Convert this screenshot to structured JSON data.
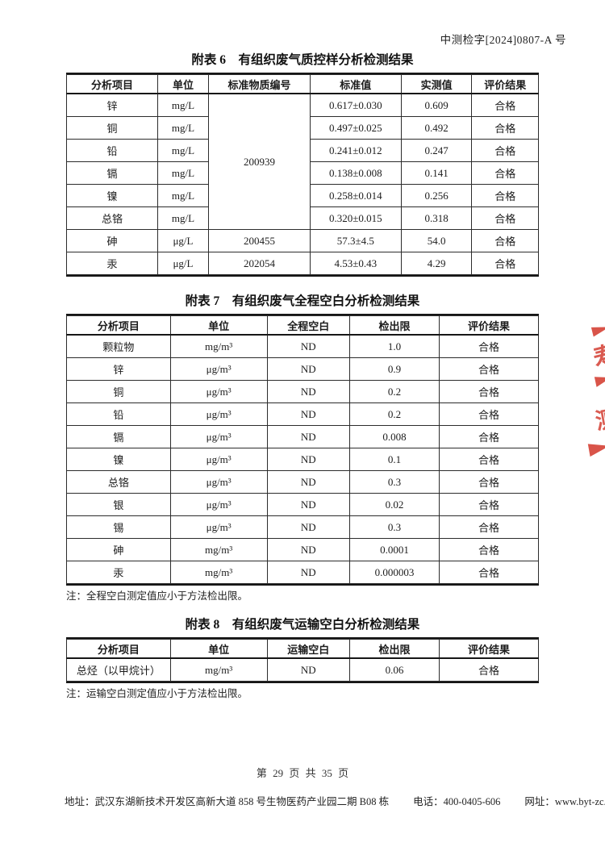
{
  "doc": {
    "number": "中测检字[2024]0807-A 号",
    "page_indicator": "第 29 页 共 35 页",
    "footer": {
      "address": "地址：武汉东湖新技术开发区高新大道 858 号生物医药产业园二期 B08 栋",
      "phone": "电话：400-0405-606",
      "website": "网址：www.byt-zc.com"
    }
  },
  "table6": {
    "title": "附表 6　有组织废气质控样分析检测结果",
    "headers": [
      "分析项目",
      "单位",
      "标准物质编号",
      "标准值",
      "实测值",
      "评价结果"
    ],
    "rows": [
      [
        {
          "t": "锌"
        },
        {
          "t": "mg/L"
        },
        {
          "t": "200939",
          "rowspan": 6
        },
        {
          "t": "0.617±0.030"
        },
        {
          "t": "0.609"
        },
        {
          "t": "合格"
        }
      ],
      [
        {
          "t": "铜"
        },
        {
          "t": "mg/L"
        },
        {
          "t": "0.497±0.025"
        },
        {
          "t": "0.492"
        },
        {
          "t": "合格"
        }
      ],
      [
        {
          "t": "铅"
        },
        {
          "t": "mg/L"
        },
        {
          "t": "0.241±0.012"
        },
        {
          "t": "0.247"
        },
        {
          "t": "合格"
        }
      ],
      [
        {
          "t": "镉"
        },
        {
          "t": "mg/L"
        },
        {
          "t": "0.138±0.008"
        },
        {
          "t": "0.141"
        },
        {
          "t": "合格"
        }
      ],
      [
        {
          "t": "镍"
        },
        {
          "t": "mg/L"
        },
        {
          "t": "0.258±0.014"
        },
        {
          "t": "0.256"
        },
        {
          "t": "合格"
        }
      ],
      [
        {
          "t": "总铬"
        },
        {
          "t": "mg/L"
        },
        {
          "t": "0.320±0.015"
        },
        {
          "t": "0.318"
        },
        {
          "t": "合格"
        }
      ],
      [
        {
          "t": "砷"
        },
        {
          "t": "μg/L"
        },
        {
          "t": "200455"
        },
        {
          "t": "57.3±4.5"
        },
        {
          "t": "54.0"
        },
        {
          "t": "合格"
        }
      ],
      [
        {
          "t": "汞"
        },
        {
          "t": "μg/L"
        },
        {
          "t": "202054"
        },
        {
          "t": "4.53±0.43"
        },
        {
          "t": "4.29"
        },
        {
          "t": "合格"
        }
      ]
    ]
  },
  "table7": {
    "title": "附表 7　有组织废气全程空白分析检测结果",
    "headers": [
      "分析项目",
      "单位",
      "全程空白",
      "检出限",
      "评价结果"
    ],
    "rows": [
      [
        {
          "t": "颗粒物"
        },
        {
          "t": "mg/m³"
        },
        {
          "t": "ND"
        },
        {
          "t": "1.0"
        },
        {
          "t": "合格"
        }
      ],
      [
        {
          "t": "锌"
        },
        {
          "t": "μg/m³"
        },
        {
          "t": "ND"
        },
        {
          "t": "0.9"
        },
        {
          "t": "合格"
        }
      ],
      [
        {
          "t": "铜"
        },
        {
          "t": "μg/m³"
        },
        {
          "t": "ND"
        },
        {
          "t": "0.2"
        },
        {
          "t": "合格"
        }
      ],
      [
        {
          "t": "铅"
        },
        {
          "t": "μg/m³"
        },
        {
          "t": "ND"
        },
        {
          "t": "0.2"
        },
        {
          "t": "合格"
        }
      ],
      [
        {
          "t": "镉"
        },
        {
          "t": "μg/m³"
        },
        {
          "t": "ND"
        },
        {
          "t": "0.008"
        },
        {
          "t": "合格"
        }
      ],
      [
        {
          "t": "镍"
        },
        {
          "t": "μg/m³"
        },
        {
          "t": "ND"
        },
        {
          "t": "0.1"
        },
        {
          "t": "合格"
        }
      ],
      [
        {
          "t": "总铬"
        },
        {
          "t": "μg/m³"
        },
        {
          "t": "ND"
        },
        {
          "t": "0.3"
        },
        {
          "t": "合格"
        }
      ],
      [
        {
          "t": "银"
        },
        {
          "t": "μg/m³"
        },
        {
          "t": "ND"
        },
        {
          "t": "0.02"
        },
        {
          "t": "合格"
        }
      ],
      [
        {
          "t": "锡"
        },
        {
          "t": "μg/m³"
        },
        {
          "t": "ND"
        },
        {
          "t": "0.3"
        },
        {
          "t": "合格"
        }
      ],
      [
        {
          "t": "砷"
        },
        {
          "t": "mg/m³"
        },
        {
          "t": "ND"
        },
        {
          "t": "0.0001"
        },
        {
          "t": "合格"
        }
      ],
      [
        {
          "t": "汞"
        },
        {
          "t": "mg/m³"
        },
        {
          "t": "ND"
        },
        {
          "t": "0.000003"
        },
        {
          "t": "合格"
        }
      ]
    ],
    "note": "注：全程空白测定值应小于方法检出限。"
  },
  "table8": {
    "title": "附表 8　有组织废气运输空白分析检测结果",
    "headers": [
      "分析项目",
      "单位",
      "运输空白",
      "检出限",
      "评价结果"
    ],
    "rows": [
      [
        {
          "t": "总烃（以甲烷计）"
        },
        {
          "t": "mg/m³"
        },
        {
          "t": "ND"
        },
        {
          "t": "0.06"
        },
        {
          "t": "合格"
        }
      ]
    ],
    "note": "注：运输空白测定值应小于方法检出限。"
  },
  "stamp": {
    "color": "#d6453a",
    "fragments": [
      "寿",
      "测"
    ]
  }
}
